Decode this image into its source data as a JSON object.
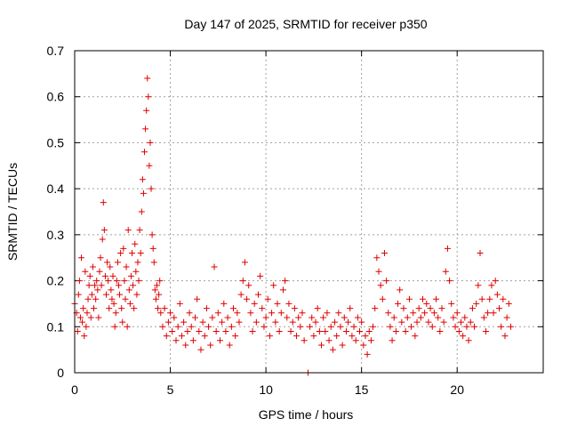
{
  "chart_data": {
    "type": "scatter",
    "title": "Day 147 of 2025, SRMTID for receiver p350",
    "xlabel": "GPS time / hours",
    "ylabel": "SRMTID / TECUs",
    "xlim": [
      0,
      24.5
    ],
    "ylim": [
      0,
      0.7
    ],
    "xticks": [
      0,
      5,
      10,
      15,
      20
    ],
    "yticks": [
      0,
      0.1,
      0.2,
      0.3,
      0.4,
      0.5,
      0.6,
      0.7
    ],
    "xtick_labels": [
      "0",
      "5",
      "10",
      "15",
      "20"
    ],
    "ytick_labels": [
      "0",
      "0.1",
      "0.2",
      "0.3",
      "0.4",
      "0.5",
      "0.6",
      "0.7"
    ],
    "grid": true,
    "marker": "+",
    "color": "#e00000",
    "series": [
      {
        "name": "SRMTID p350",
        "points": [
          [
            0.0,
            0.15
          ],
          [
            0.1,
            0.13
          ],
          [
            0.15,
            0.09
          ],
          [
            0.2,
            0.17
          ],
          [
            0.25,
            0.2
          ],
          [
            0.3,
            0.12
          ],
          [
            0.35,
            0.25
          ],
          [
            0.4,
            0.11
          ],
          [
            0.45,
            0.14
          ],
          [
            0.5,
            0.08
          ],
          [
            0.55,
            0.22
          ],
          [
            0.6,
            0.1
          ],
          [
            0.65,
            0.13
          ],
          [
            0.7,
            0.16
          ],
          [
            0.75,
            0.19
          ],
          [
            0.8,
            0.21
          ],
          [
            0.85,
            0.12
          ],
          [
            0.9,
            0.17
          ],
          [
            0.95,
            0.23
          ],
          [
            1.0,
            0.14
          ],
          [
            1.05,
            0.19
          ],
          [
            1.1,
            0.16
          ],
          [
            1.15,
            0.2
          ],
          [
            1.2,
            0.18
          ],
          [
            1.25,
            0.12
          ],
          [
            1.3,
            0.22
          ],
          [
            1.35,
            0.25
          ],
          [
            1.4,
            0.19
          ],
          [
            1.45,
            0.29
          ],
          [
            1.5,
            0.37
          ],
          [
            1.55,
            0.31
          ],
          [
            1.6,
            0.21
          ],
          [
            1.65,
            0.17
          ],
          [
            1.7,
            0.24
          ],
          [
            1.75,
            0.2
          ],
          [
            1.8,
            0.14
          ],
          [
            1.85,
            0.23
          ],
          [
            1.9,
            0.18
          ],
          [
            1.95,
            0.16
          ],
          [
            2.0,
            0.21
          ],
          [
            2.05,
            0.15
          ],
          [
            2.1,
            0.1
          ],
          [
            2.15,
            0.13
          ],
          [
            2.2,
            0.2
          ],
          [
            2.25,
            0.24
          ],
          [
            2.3,
            0.19
          ],
          [
            2.35,
            0.17
          ],
          [
            2.4,
            0.26
          ],
          [
            2.45,
            0.14
          ],
          [
            2.5,
            0.11
          ],
          [
            2.55,
            0.27
          ],
          [
            2.6,
            0.2
          ],
          [
            2.65,
            0.16
          ],
          [
            2.7,
            0.23
          ],
          [
            2.75,
            0.1
          ],
          [
            2.8,
            0.31
          ],
          [
            2.85,
            0.18
          ],
          [
            2.9,
            0.15
          ],
          [
            2.95,
            0.21
          ],
          [
            3.0,
            0.26
          ],
          [
            3.05,
            0.19
          ],
          [
            3.1,
            0.14
          ],
          [
            3.15,
            0.28
          ],
          [
            3.2,
            0.22
          ],
          [
            3.25,
            0.17
          ],
          [
            3.3,
            0.24
          ],
          [
            3.35,
            0.2
          ],
          [
            3.4,
            0.31
          ],
          [
            3.45,
            0.26
          ],
          [
            3.5,
            0.35
          ],
          [
            3.55,
            0.42
          ],
          [
            3.6,
            0.39
          ],
          [
            3.65,
            0.48
          ],
          [
            3.7,
            0.53
          ],
          [
            3.75,
            0.57
          ],
          [
            3.8,
            0.64
          ],
          [
            3.85,
            0.6
          ],
          [
            3.9,
            0.45
          ],
          [
            3.95,
            0.5
          ],
          [
            4.0,
            0.4
          ],
          [
            4.05,
            0.3
          ],
          [
            4.1,
            0.27
          ],
          [
            4.15,
            0.24
          ],
          [
            4.2,
            0.18
          ],
          [
            4.25,
            0.16
          ],
          [
            4.3,
            0.19
          ],
          [
            4.35,
            0.14
          ],
          [
            4.4,
            0.17
          ],
          [
            4.45,
            0.2
          ],
          [
            4.5,
            0.13
          ],
          [
            4.6,
            0.1
          ],
          [
            4.7,
            0.14
          ],
          [
            4.8,
            0.08
          ],
          [
            4.9,
            0.11
          ],
          [
            5.0,
            0.13
          ],
          [
            5.1,
            0.09
          ],
          [
            5.2,
            0.12
          ],
          [
            5.3,
            0.07
          ],
          [
            5.4,
            0.1
          ],
          [
            5.5,
            0.15
          ],
          [
            5.6,
            0.08
          ],
          [
            5.7,
            0.11
          ],
          [
            5.8,
            0.06
          ],
          [
            5.9,
            0.09
          ],
          [
            6.0,
            0.13
          ],
          [
            6.1,
            0.1
          ],
          [
            6.2,
            0.07
          ],
          [
            6.3,
            0.12
          ],
          [
            6.4,
            0.16
          ],
          [
            6.5,
            0.09
          ],
          [
            6.6,
            0.05
          ],
          [
            6.7,
            0.11
          ],
          [
            6.8,
            0.08
          ],
          [
            6.9,
            0.14
          ],
          [
            7.0,
            0.1
          ],
          [
            7.1,
            0.06
          ],
          [
            7.2,
            0.12
          ],
          [
            7.3,
            0.23
          ],
          [
            7.4,
            0.09
          ],
          [
            7.5,
            0.13
          ],
          [
            7.6,
            0.07
          ],
          [
            7.7,
            0.11
          ],
          [
            7.8,
            0.15
          ],
          [
            7.9,
            0.09
          ],
          [
            8.0,
            0.12
          ],
          [
            8.1,
            0.06
          ],
          [
            8.2,
            0.1
          ],
          [
            8.3,
            0.14
          ],
          [
            8.4,
            0.08
          ],
          [
            8.5,
            0.13
          ],
          [
            8.6,
            0.11
          ],
          [
            8.7,
            0.17
          ],
          [
            8.8,
            0.2
          ],
          [
            8.9,
            0.24
          ],
          [
            9.0,
            0.16
          ],
          [
            9.1,
            0.19
          ],
          [
            9.2,
            0.13
          ],
          [
            9.3,
            0.09
          ],
          [
            9.4,
            0.15
          ],
          [
            9.5,
            0.11
          ],
          [
            9.6,
            0.17
          ],
          [
            9.7,
            0.21
          ],
          [
            9.8,
            0.14
          ],
          [
            9.9,
            0.1
          ],
          [
            10.0,
            0.12
          ],
          [
            10.1,
            0.16
          ],
          [
            10.2,
            0.08
          ],
          [
            10.3,
            0.13
          ],
          [
            10.4,
            0.19
          ],
          [
            10.5,
            0.11
          ],
          [
            10.6,
            0.15
          ],
          [
            10.7,
            0.09
          ],
          [
            10.8,
            0.13
          ],
          [
            10.9,
            0.18
          ],
          [
            11.0,
            0.2
          ],
          [
            11.1,
            0.12
          ],
          [
            11.2,
            0.15
          ],
          [
            11.3,
            0.09
          ],
          [
            11.4,
            0.11
          ],
          [
            11.5,
            0.14
          ],
          [
            11.6,
            0.08
          ],
          [
            11.7,
            0.12
          ],
          [
            11.8,
            0.1
          ],
          [
            11.9,
            0.13
          ],
          [
            12.0,
            0.07
          ],
          [
            12.2,
            0.0
          ],
          [
            12.3,
            0.1
          ],
          [
            12.4,
            0.12
          ],
          [
            12.5,
            0.08
          ],
          [
            12.6,
            0.11
          ],
          [
            12.7,
            0.14
          ],
          [
            12.8,
            0.09
          ],
          [
            12.9,
            0.06
          ],
          [
            13.0,
            0.12
          ],
          [
            13.1,
            0.09
          ],
          [
            13.2,
            0.13
          ],
          [
            13.3,
            0.07
          ],
          [
            13.4,
            0.1
          ],
          [
            13.5,
            0.05
          ],
          [
            13.6,
            0.11
          ],
          [
            13.7,
            0.08
          ],
          [
            13.8,
            0.13
          ],
          [
            13.9,
            0.1
          ],
          [
            14.0,
            0.06
          ],
          [
            14.1,
            0.12
          ],
          [
            14.2,
            0.09
          ],
          [
            14.3,
            0.11
          ],
          [
            14.4,
            0.14
          ],
          [
            14.5,
            0.08
          ],
          [
            14.6,
            0.1
          ],
          [
            14.7,
            0.07
          ],
          [
            14.8,
            0.12
          ],
          [
            14.9,
            0.09
          ],
          [
            15.0,
            0.11
          ],
          [
            15.1,
            0.06
          ],
          [
            15.2,
            0.08
          ],
          [
            15.3,
            0.04
          ],
          [
            15.4,
            0.09
          ],
          [
            15.5,
            0.07
          ],
          [
            15.6,
            0.1
          ],
          [
            15.7,
            0.14
          ],
          [
            15.8,
            0.25
          ],
          [
            15.9,
            0.22
          ],
          [
            16.0,
            0.19
          ],
          [
            16.1,
            0.16
          ],
          [
            16.2,
            0.26
          ],
          [
            16.3,
            0.2
          ],
          [
            16.4,
            0.13
          ],
          [
            16.5,
            0.1
          ],
          [
            16.6,
            0.07
          ],
          [
            16.7,
            0.12
          ],
          [
            16.8,
            0.09
          ],
          [
            16.9,
            0.15
          ],
          [
            17.0,
            0.18
          ],
          [
            17.1,
            0.11
          ],
          [
            17.2,
            0.14
          ],
          [
            17.3,
            0.09
          ],
          [
            17.4,
            0.12
          ],
          [
            17.5,
            0.16
          ],
          [
            17.6,
            0.1
          ],
          [
            17.7,
            0.13
          ],
          [
            17.8,
            0.08
          ],
          [
            17.9,
            0.11
          ],
          [
            18.0,
            0.14
          ],
          [
            18.1,
            0.12
          ],
          [
            18.2,
            0.16
          ],
          [
            18.3,
            0.13
          ],
          [
            18.4,
            0.15
          ],
          [
            18.5,
            0.11
          ],
          [
            18.6,
            0.14
          ],
          [
            18.7,
            0.1
          ],
          [
            18.8,
            0.13
          ],
          [
            18.9,
            0.16
          ],
          [
            19.0,
            0.12
          ],
          [
            19.1,
            0.09
          ],
          [
            19.2,
            0.14
          ],
          [
            19.3,
            0.11
          ],
          [
            19.4,
            0.22
          ],
          [
            19.5,
            0.27
          ],
          [
            19.6,
            0.2
          ],
          [
            19.7,
            0.15
          ],
          [
            19.8,
            0.12
          ],
          [
            19.9,
            0.1
          ],
          [
            20.0,
            0.13
          ],
          [
            20.1,
            0.09
          ],
          [
            20.2,
            0.11
          ],
          [
            20.3,
            0.08
          ],
          [
            20.4,
            0.12
          ],
          [
            20.5,
            0.1
          ],
          [
            20.6,
            0.07
          ],
          [
            20.7,
            0.11
          ],
          [
            20.8,
            0.14
          ],
          [
            20.9,
            0.1
          ],
          [
            21.0,
            0.15
          ],
          [
            21.1,
            0.19
          ],
          [
            21.2,
            0.26
          ],
          [
            21.3,
            0.16
          ],
          [
            21.4,
            0.12
          ],
          [
            21.5,
            0.09
          ],
          [
            21.6,
            0.13
          ],
          [
            21.7,
            0.16
          ],
          [
            21.8,
            0.19
          ],
          [
            21.9,
            0.13
          ],
          [
            22.0,
            0.2
          ],
          [
            22.1,
            0.17
          ],
          [
            22.2,
            0.14
          ],
          [
            22.3,
            0.1
          ],
          [
            22.4,
            0.16
          ],
          [
            22.5,
            0.08
          ],
          [
            22.6,
            0.12
          ],
          [
            22.7,
            0.15
          ],
          [
            22.8,
            0.1
          ]
        ]
      }
    ]
  }
}
